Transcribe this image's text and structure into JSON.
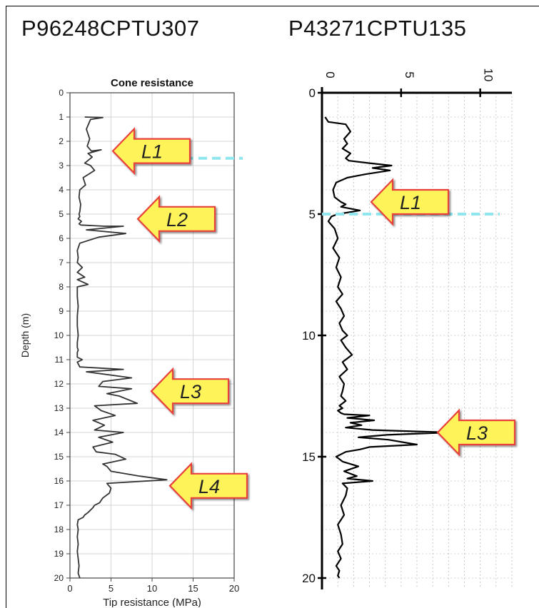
{
  "titles": [
    "P96248CPTU307",
    "P43271CPTU135"
  ],
  "chart_data": [
    {
      "type": "line",
      "title": "Cone resistance",
      "xlabel": "Tip resistance (MPa)",
      "ylabel": "Depth (m)",
      "xlim": [
        0,
        20
      ],
      "ylim": [
        20,
        0
      ],
      "y_inverted": true,
      "grid": true,
      "x_ticks": [
        0,
        5,
        10,
        15,
        20
      ],
      "y_ticks": [
        0,
        1,
        2,
        3,
        4,
        5,
        6,
        7,
        8,
        9,
        10,
        11,
        12,
        13,
        14,
        15,
        16,
        17,
        18,
        19,
        20
      ],
      "series": [
        {
          "x": [
            1.8,
            4.0,
            2.5,
            2.0,
            2.4,
            2.1,
            2.6,
            3.8,
            2.2,
            2.7,
            1.8,
            2.5,
            3.0,
            1.6,
            1.9,
            1.2,
            1.1,
            1.3,
            1.2,
            1.1,
            1.2,
            1.0,
            1.4,
            1.1,
            1.3,
            4.2,
            6.5,
            2.0,
            6.8,
            3.5,
            1.2,
            0.9,
            1.0,
            0.9,
            1.5,
            0.9,
            1.8,
            0.9,
            2.2,
            0.9,
            0.9,
            1.0,
            0.9,
            0.9,
            1.0,
            0.9,
            0.9,
            1.0,
            0.9,
            0.9,
            1.5,
            0.9,
            1.2,
            6.5,
            2.0,
            7.5,
            4.0,
            3.5,
            7.5,
            4.5,
            6.0,
            8.2,
            3.0,
            3.8,
            5.5,
            2.8,
            4.2,
            3.0,
            6.5,
            3.5,
            5.2,
            2.8,
            3.2,
            5.5,
            6.8,
            4.0,
            4.5,
            5.0,
            8.5,
            11.8,
            4.5,
            5.0,
            4.8,
            4.0,
            3.6,
            3.0,
            2.8,
            2.5,
            2.2,
            1.8,
            1.6,
            1.0,
            0.9,
            1.0,
            0.9,
            1.0,
            0.9,
            1.0,
            1.1,
            1.0,
            1.2
          ],
          "y": [
            1.0,
            1.02,
            1.1,
            1.5,
            1.9,
            2.2,
            2.4,
            2.35,
            2.5,
            2.65,
            2.9,
            3.0,
            3.2,
            3.5,
            3.8,
            4.0,
            4.3,
            4.6,
            4.9,
            5.0,
            5.1,
            5.2,
            5.3,
            5.4,
            5.45,
            5.5,
            5.5,
            5.65,
            5.8,
            5.95,
            6.2,
            6.5,
            6.8,
            7.0,
            7.2,
            7.4,
            7.6,
            7.7,
            7.9,
            8.0,
            8.4,
            8.8,
            9.2,
            9.6,
            10.0,
            10.3,
            10.5,
            10.6,
            10.7,
            10.9,
            11.0,
            11.1,
            11.3,
            11.4,
            11.5,
            11.75,
            11.9,
            12.1,
            12.2,
            12.4,
            12.5,
            12.8,
            12.9,
            13.1,
            13.3,
            13.5,
            13.7,
            13.9,
            14.0,
            14.2,
            14.4,
            14.6,
            14.8,
            14.9,
            15.1,
            15.3,
            15.4,
            15.6,
            15.8,
            15.95,
            16.1,
            16.3,
            16.5,
            16.7,
            16.9,
            17.0,
            17.1,
            17.2,
            17.3,
            17.4,
            17.5,
            17.6,
            17.8,
            18.0,
            18.3,
            18.6,
            18.9,
            19.2,
            19.5,
            19.8,
            20.0
          ]
        }
      ],
      "annotations": [
        {
          "label": "L1",
          "depth": 2.4,
          "value": 6.0
        },
        {
          "label": "L2",
          "depth": 5.2,
          "value": 8.2
        },
        {
          "label": "L3",
          "depth": 12.3,
          "value": 10.2
        },
        {
          "label": "L4",
          "depth": 16.2,
          "value": 13.0
        }
      ],
      "reference_line_depth": 2.7
    },
    {
      "type": "line",
      "title": "",
      "xlabel": "",
      "ylabel": "",
      "xlim": [
        0,
        12
      ],
      "ylim": [
        20,
        0
      ],
      "y_inverted": true,
      "grid": true,
      "x_ticks": [
        0,
        5,
        10
      ],
      "y_ticks": [
        0,
        5,
        10,
        15,
        20
      ],
      "series": [
        {
          "x": [
            0.2,
            0.4,
            1.5,
            1.8,
            1.4,
            1.6,
            1.3,
            1.8,
            1.5,
            1.7,
            3.0,
            4.4,
            3.2,
            4.3,
            2.8,
            1.6,
            0.9,
            0.7,
            0.8,
            1.2,
            1.5,
            1.2,
            2.4,
            1.0,
            0.6,
            0.4,
            0.8,
            1.0,
            0.7,
            1.1,
            0.9,
            1.2,
            1.0,
            1.3,
            0.9,
            1.2,
            1.4,
            1.1,
            1.3,
            1.6,
            1.2,
            1.5,
            1.9,
            1.3,
            1.6,
            1.1,
            1.4,
            1.3,
            1.2,
            1.5,
            1.1,
            1.3,
            1.0,
            1.2,
            1.4,
            3.0,
            1.6,
            3.3,
            1.8,
            2.5,
            1.5,
            3.2,
            8.0,
            4.1,
            2.3,
            4.2,
            6.0,
            3.0,
            2.4,
            1.5,
            0.9,
            1.3,
            2.3,
            1.4,
            2.2,
            1.6,
            3.2,
            1.3,
            1.6,
            1.5,
            1.2,
            1.4,
            1.0,
            1.2,
            1.3,
            1.0,
            1.2,
            0.9,
            1.1,
            1.0,
            1.1
          ],
          "y": [
            1.0,
            1.2,
            1.3,
            1.6,
            1.9,
            2.1,
            2.3,
            2.5,
            2.7,
            2.8,
            2.9,
            3.0,
            3.1,
            3.2,
            3.35,
            3.5,
            3.7,
            4.0,
            4.3,
            4.5,
            4.6,
            4.7,
            4.85,
            5.0,
            5.1,
            5.3,
            5.6,
            6.0,
            6.4,
            6.8,
            7.2,
            7.6,
            8.0,
            8.3,
            8.6,
            8.9,
            9.2,
            9.5,
            9.8,
            10.0,
            10.2,
            10.5,
            10.8,
            11.1,
            11.4,
            11.7,
            12.0,
            12.3,
            12.5,
            12.7,
            12.9,
            13.0,
            13.1,
            13.2,
            13.25,
            13.3,
            13.4,
            13.5,
            13.6,
            13.7,
            13.8,
            13.9,
            14.0,
            14.1,
            14.2,
            14.3,
            14.5,
            14.6,
            14.7,
            14.8,
            15.0,
            15.2,
            15.4,
            15.6,
            15.8,
            15.9,
            16.0,
            16.1,
            16.3,
            16.6,
            17.0,
            17.4,
            17.8,
            18.2,
            18.6,
            18.9,
            19.2,
            19.5,
            19.7,
            19.9,
            20.0
          ]
        }
      ],
      "annotations": [
        {
          "label": "L1",
          "depth": 4.5,
          "value": 8.0
        },
        {
          "label": "L3",
          "depth": 14.0,
          "value": 11.0
        }
      ],
      "reference_line_depth": 5.0
    }
  ]
}
